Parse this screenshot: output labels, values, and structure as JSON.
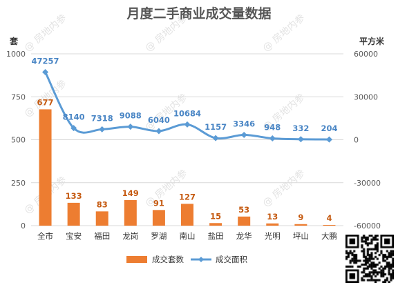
{
  "colors": {
    "bar": "#ed7d31",
    "line": "#5b9bd5",
    "bar_label": "#c55a11",
    "line_label": "#4a86c5",
    "grid": "#d9d9d9"
  },
  "watermark": "@ 房地内参",
  "chart_data": {
    "type": "bar",
    "title": "月度二手商业成交量数据",
    "left_axis_unit": "套",
    "right_axis_unit": "平方米",
    "categories": [
      "全市",
      "宝安",
      "福田",
      "龙岗",
      "罗湖",
      "南山",
      "盐田",
      "龙华",
      "光明",
      "坪山",
      "大鹏"
    ],
    "left_ylim": [
      0,
      1000
    ],
    "left_ticks": [
      "1000",
      "750",
      "500",
      "250",
      "0"
    ],
    "right_ylim": [
      -60000,
      60000
    ],
    "right_ticks": [
      "60000",
      "30000",
      "0",
      "-30000",
      "-60000"
    ],
    "grid": true,
    "legend_position": "bottom",
    "series": [
      {
        "name": "成交套数",
        "type": "bar",
        "axis": "left",
        "values": [
          677,
          133,
          83,
          149,
          91,
          127,
          15,
          53,
          13,
          9,
          4
        ]
      },
      {
        "name": "成交面积",
        "type": "line",
        "axis": "right",
        "values": [
          47257,
          8140,
          7318,
          9088,
          6040,
          10684,
          1157,
          3346,
          948,
          332,
          204
        ]
      }
    ]
  }
}
